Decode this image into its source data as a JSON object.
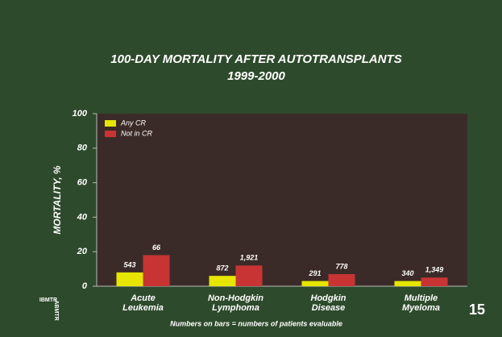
{
  "chart_data": {
    "type": "bar",
    "title": "100-DAY MORTALITY AFTER AUTOTRANSPLANTS",
    "subtitle": "1999-2000",
    "y_label": "MORTALITY, %",
    "categories": [
      "Acute\nLeukemia",
      "Non-Hodgkin\nLymphoma",
      "Hodgkin\nDisease",
      "Multiple\nMyeloma"
    ],
    "series": [
      {
        "name": "Any CR",
        "color": "#e6e600",
        "values": [
          8,
          6,
          3,
          3
        ],
        "n_labels": [
          "543",
          "872",
          "291",
          "340"
        ]
      },
      {
        "name": "Not in CR",
        "color": "#c83434",
        "values": [
          18,
          12,
          7,
          5
        ],
        "n_labels": [
          "66",
          "1,921",
          "778",
          "1,349"
        ]
      }
    ],
    "ylim": [
      0,
      100
    ],
    "yticks": [
      0,
      20,
      40,
      60,
      80,
      100
    ],
    "grid": false,
    "legend": "upper-left",
    "footnote": "Numbers on bars = numbers of patients evaluable",
    "slide_number": "15",
    "logo": [
      "IBMTR",
      "ABMTR"
    ]
  }
}
